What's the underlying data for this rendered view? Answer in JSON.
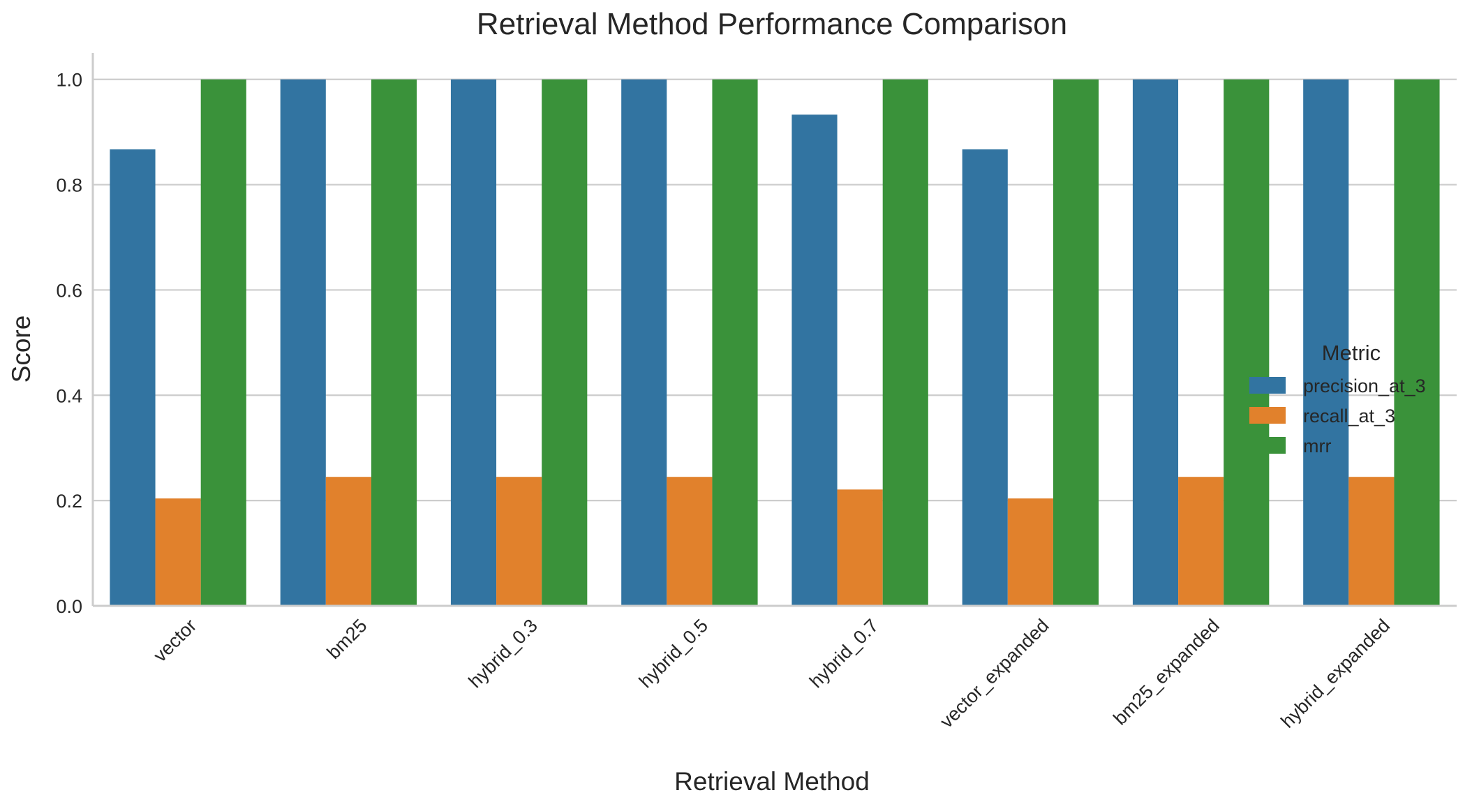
{
  "chart_data": {
    "type": "bar",
    "title": "Retrieval Method Performance Comparison",
    "xlabel": "Retrieval Method",
    "ylabel": "Score",
    "ylim": [
      0,
      1.05
    ],
    "yticks": [
      0.0,
      0.2,
      0.4,
      0.6,
      0.8,
      1.0
    ],
    "ytick_labels": [
      "0.0",
      "0.2",
      "0.4",
      "0.6",
      "0.8",
      "1.0"
    ],
    "grid": "horizontal",
    "legend_position": "center-right",
    "legend_title": "Metric",
    "categories": [
      "vector",
      "bm25",
      "hybrid_0.3",
      "hybrid_0.5",
      "hybrid_0.7",
      "vector_expanded",
      "bm25_expanded",
      "hybrid_expanded"
    ],
    "series": [
      {
        "name": "precision_at_3",
        "color": "#3274a1",
        "values": [
          0.867,
          1.0,
          1.0,
          1.0,
          0.933,
          0.867,
          1.0,
          1.0
        ]
      },
      {
        "name": "recall_at_3",
        "color": "#e1812c",
        "values": [
          0.204,
          0.245,
          0.245,
          0.245,
          0.221,
          0.204,
          0.245,
          0.245
        ]
      },
      {
        "name": "mrr",
        "color": "#3a923a",
        "values": [
          1.0,
          1.0,
          1.0,
          1.0,
          1.0,
          1.0,
          1.0,
          1.0
        ]
      }
    ]
  }
}
